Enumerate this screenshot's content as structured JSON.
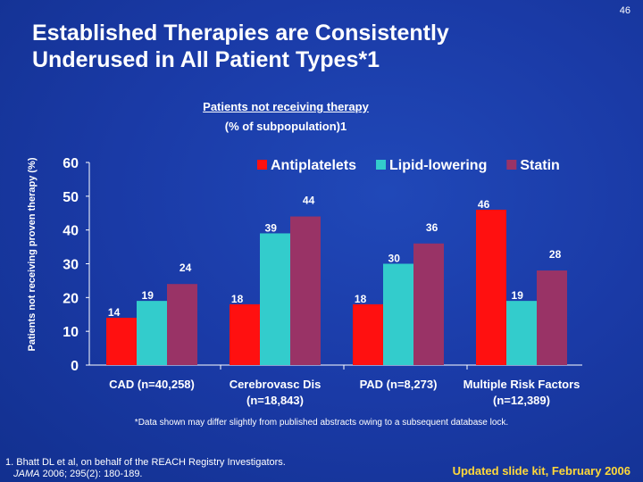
{
  "page_number": "46",
  "title": "Established Therapies are Consistently Underused in All Patient Types*1",
  "footnote": "*Data shown may differ slightly from published abstracts owing to a subsequent database lock.",
  "reference_line1": "1. Bhatt DL et al, on behalf of the REACH Registry Investigators.",
  "reference_journal": "JAMA",
  "reference_line2": " 2006; 295(2): 180-189.",
  "updated": "Updated slide kit, February 2006",
  "chart_data": {
    "type": "bar",
    "title": "Patients not receiving therapy",
    "subtitle": "(% of subpopulation)1",
    "ylabel": "Patients not receiving proven therapy (%)",
    "xlabel": "",
    "ylim": [
      0,
      60
    ],
    "yticks": [
      0,
      10,
      20,
      30,
      40,
      50,
      60
    ],
    "grid": false,
    "legend": "top-right",
    "categories": [
      "CAD (n=40,258)",
      "Cerebrovasc Dis (n=18,843)",
      "PAD (n=8,273)",
      "Multiple Risk Factors (n=12,389)"
    ],
    "series": [
      {
        "name": "Antiplatelets",
        "color": "#ff1010",
        "values": [
          14,
          18,
          18,
          46
        ]
      },
      {
        "name": "Lipid-lowering",
        "color": "#33cccc",
        "values": [
          19,
          39,
          30,
          19
        ]
      },
      {
        "name": "Statin",
        "color": "#993366",
        "values": [
          24,
          44,
          36,
          28
        ]
      }
    ]
  }
}
